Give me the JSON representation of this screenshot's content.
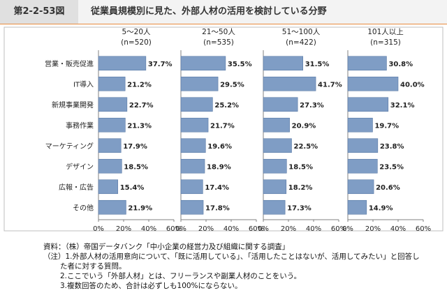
{
  "figure": {
    "label": "第2-2-53図",
    "title": "従業員規模別に見た、外部人材の活用を検討している分野"
  },
  "chart_data": {
    "type": "bar",
    "orientation": "horizontal",
    "categories": [
      "営業・販売促進",
      "IT導入",
      "新規事業開発",
      "事務作業",
      "マーケティング",
      "デザイン",
      "広報・広告",
      "その他"
    ],
    "series": [
      {
        "name": "5～20人",
        "n_label": "(n=520)",
        "values": [
          37.7,
          21.2,
          22.7,
          21.3,
          17.9,
          18.5,
          15.4,
          21.9
        ]
      },
      {
        "name": "21～50人",
        "n_label": "(n=535)",
        "values": [
          35.5,
          29.5,
          25.2,
          21.7,
          19.6,
          18.9,
          17.4,
          17.8
        ]
      },
      {
        "name": "51～100人",
        "n_label": "(n=422)",
        "values": [
          31.5,
          41.7,
          27.3,
          20.9,
          22.5,
          18.5,
          18.2,
          17.3
        ]
      },
      {
        "name": "101人以上",
        "n_label": "(n=315)",
        "values": [
          30.8,
          40.0,
          32.1,
          19.7,
          23.8,
          23.5,
          20.6,
          14.9
        ]
      }
    ],
    "xlim": [
      0,
      60
    ],
    "xticks": [
      "0%",
      "20%",
      "40%",
      "60%"
    ],
    "value_format": "%",
    "bar_color": "#7f9dc5",
    "bar_edge_color": "#5a7aa6"
  },
  "notes": {
    "source": "資料：（株）帝国データバンク「中小企業の経営力及び組織に関する調査」",
    "note1_line1": "（注）1.外部人材の活用意向について、「既に活用している」、「活用したことはないが、活用してみたい」と回答し",
    "note1_line2": "た者に対する質問。",
    "note2": "2.ここでいう「外部人材」とは、フリーランスや副業人材のことをいう。",
    "note3": "3.複数回答のため、合計は必ずしも100%にならない。"
  }
}
